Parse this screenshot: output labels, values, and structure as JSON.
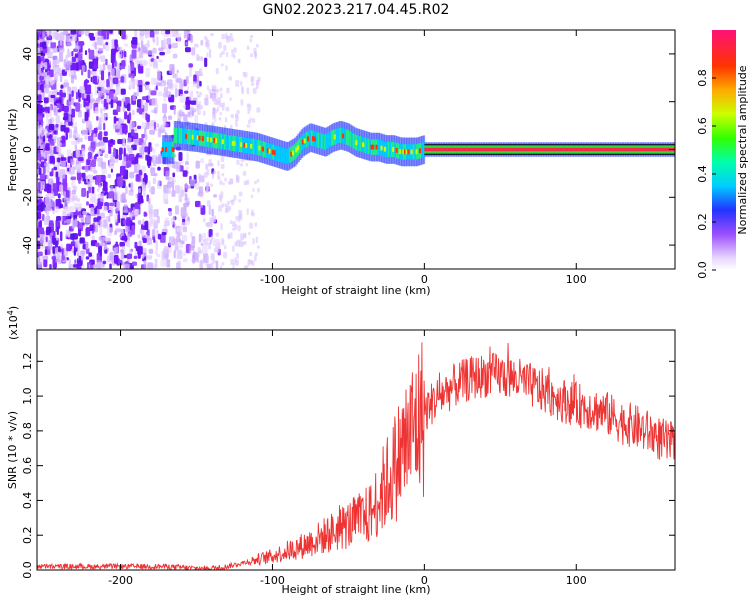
{
  "title": "GN02.2023.217.04.45.R02",
  "chart_data": [
    {
      "type": "heatmap",
      "xlabel": "Height of straight line (km)",
      "ylabel": "Frequency (Hz)",
      "xlim": [
        -255,
        165
      ],
      "ylim": [
        -50,
        50
      ],
      "xticks": [
        -200,
        -100,
        0,
        100
      ],
      "yticks": [
        -40,
        -20,
        0,
        20,
        40
      ],
      "ridge": {
        "x": [
          -165,
          -150,
          -140,
          -130,
          -120,
          -110,
          -100,
          -95,
          -90,
          -85,
          -80,
          -75,
          -70,
          -65,
          -60,
          -55,
          -50,
          -45,
          -40,
          -35,
          -30,
          -25,
          -20,
          -15,
          -10,
          -5,
          0,
          10,
          20,
          40,
          60,
          80,
          100,
          120,
          140,
          165
        ],
        "y": [
          6,
          5,
          4,
          3,
          2,
          1,
          -1,
          -2,
          -3,
          -1,
          3,
          5,
          4,
          3,
          5,
          6,
          5,
          3,
          2,
          1,
          1,
          0,
          0,
          -1,
          -1,
          -1,
          0,
          0,
          0,
          0,
          0,
          0,
          0,
          0,
          0,
          0
        ]
      },
      "colorbar": {
        "label": "Normalized spectral amplitude",
        "ticks": [
          "0.0",
          "0.2",
          "0.4",
          "0.6",
          "0.8"
        ],
        "range": [
          0,
          1
        ]
      }
    },
    {
      "type": "line",
      "xlabel": "Height of straight line (km)",
      "ylabel": "SNR (10 * v/v)",
      "exponent_label": "(x10",
      "exponent_power": "4",
      "exponent_close": ")",
      "xlim": [
        -255,
        165
      ],
      "ylim": [
        0,
        1.38
      ],
      "xticks": [
        -200,
        -100,
        0,
        100
      ],
      "yticks": [
        "0.0",
        "0.2",
        "0.4",
        "0.6",
        "0.8",
        "1.0",
        "1.2"
      ],
      "ytick_values": [
        0,
        0.2,
        0.4,
        0.6,
        0.8,
        1.0,
        1.2
      ],
      "series": [
        {
          "color": "#ee3333",
          "x": [
            -255,
            -230,
            -200,
            -170,
            -150,
            -140,
            -130,
            -120,
            -110,
            -100,
            -90,
            -80,
            -70,
            -60,
            -50,
            -40,
            -35,
            -30,
            -25,
            -20,
            -15,
            -10,
            -5,
            0,
            5,
            10,
            20,
            30,
            40,
            50,
            60,
            70,
            80,
            90,
            100,
            110,
            120,
            130,
            140,
            150,
            160,
            165
          ],
          "y": [
            0.02,
            0.02,
            0.02,
            0.02,
            0.01,
            0.01,
            0.02,
            0.04,
            0.06,
            0.08,
            0.11,
            0.14,
            0.18,
            0.22,
            0.26,
            0.3,
            0.33,
            0.42,
            0.5,
            0.58,
            0.68,
            0.76,
            0.84,
            0.9,
            0.96,
            1.0,
            1.06,
            1.1,
            1.12,
            1.12,
            1.1,
            1.06,
            1.02,
            0.98,
            0.95,
            0.93,
            0.9,
            0.85,
            0.82,
            0.78,
            0.73,
            0.72
          ]
        }
      ]
    }
  ]
}
